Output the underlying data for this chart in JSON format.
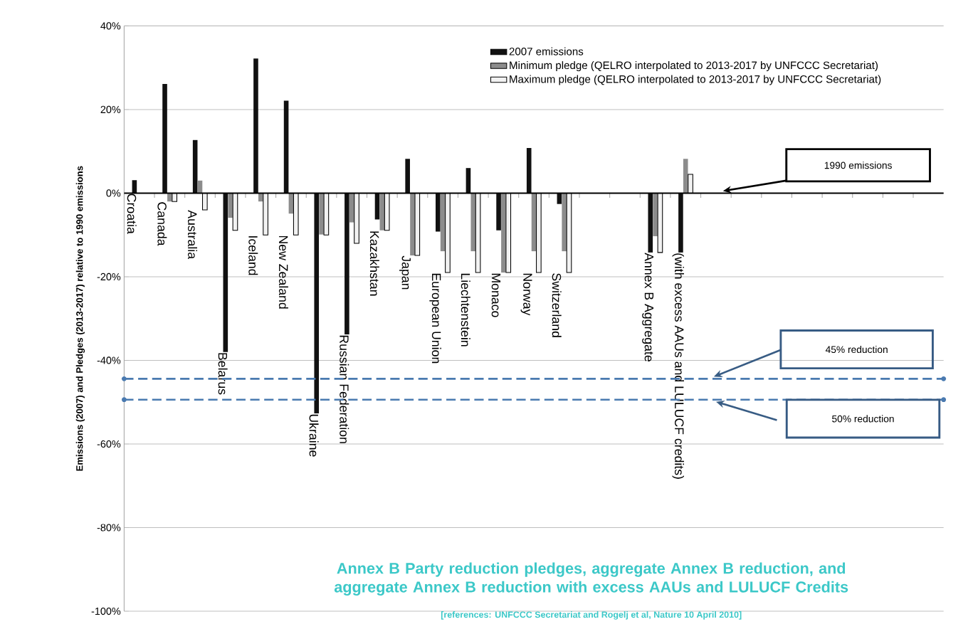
{
  "chart_data": {
    "type": "bar",
    "title": "Annex B Party reduction pledges, aggregate Annex B reduction, and aggregate Annex B reduction with excess AAUs and LULUCF Credits",
    "ylabel": "Emissions (2007) and Pledges (2013-2017) relative to 1990 emissions",
    "annotations": [
      "[references: UNFCCC Secretariat and Rogelj et al, Nature 10 April 2010]"
    ],
    "categories": [
      "Croatia",
      "Canada",
      "Australia",
      "Belarus",
      "Iceland",
      "New Zealand",
      "Ukraine",
      "Russian Federation",
      "Kazakhstan",
      "Japan",
      "European Union",
      "Liechtenstein",
      "Monaco",
      "Norway",
      "Switzerland",
      null,
      null,
      "Annex B Aggregate",
      "(with excess AAUs and LULUCF credits)",
      null,
      null,
      null,
      null,
      null,
      null,
      null,
      null
    ],
    "series": [
      {
        "name": "2007 emissions",
        "color": "#111111",
        "values": [
          3.1,
          26.1,
          12.7,
          -38,
          32.2,
          22.1,
          -52.7,
          -33.8,
          -6.3,
          8.2,
          -9.2,
          6,
          -8.9,
          10.8,
          -2.6,
          null,
          null,
          -14.2,
          -14.2,
          null,
          null,
          null,
          null,
          null,
          null,
          null,
          null
        ]
      },
      {
        "name": "Minimum pledge (QELRO interpolated to 2013-2017 by UNFCCC Secretariat)",
        "color": "#8c8c8c",
        "values": [
          null,
          -2,
          3,
          -5.9,
          -2,
          -4.9,
          -9.9,
          -7,
          -8.9,
          -14.9,
          -13.9,
          -13.9,
          -19,
          -13.9,
          -13.9,
          null,
          null,
          -10.3,
          8.2,
          null,
          null,
          null,
          null,
          null,
          null,
          null,
          null
        ]
      },
      {
        "name": "Maximum pledge (QELRO interpolated to 2013-2017 by UNFCCC Secretariat)",
        "color": "#f2f2f2",
        "values": [
          null,
          -2,
          -4,
          -8.9,
          -10,
          -10,
          -10,
          -12,
          -8.9,
          -14.9,
          -19,
          -19,
          -19,
          -19,
          -19,
          null,
          null,
          -14.2,
          4.5,
          null,
          null,
          null,
          null,
          null,
          null,
          null,
          null
        ]
      }
    ],
    "ylim": [
      -100,
      40
    ],
    "yticks": [
      {
        "value": -100,
        "label": "-100%"
      },
      {
        "value": -80,
        "label": "-80%"
      },
      {
        "value": -60,
        "label": "-60%"
      },
      {
        "value": -40,
        "label": "-40%"
      },
      {
        "value": -20,
        "label": "-20%"
      },
      {
        "value": 0,
        "label": "0%"
      },
      {
        "value": 20,
        "label": "20%"
      },
      {
        "value": 40,
        "label": "40%"
      }
    ],
    "grid": "y",
    "legend": "top right",
    "ref_lines": [
      {
        "axis": "y",
        "value": 0,
        "label": "1990 emissions",
        "color": "#000000"
      },
      {
        "axis": "y",
        "value": -44.4,
        "label": "45% reduction",
        "color": "#4a7ab0",
        "line_style": "dashed"
      },
      {
        "axis": "y",
        "value": -49.4,
        "label": "50% reduction",
        "color": "#4a7ab0",
        "line_style": "dashed"
      }
    ]
  }
}
